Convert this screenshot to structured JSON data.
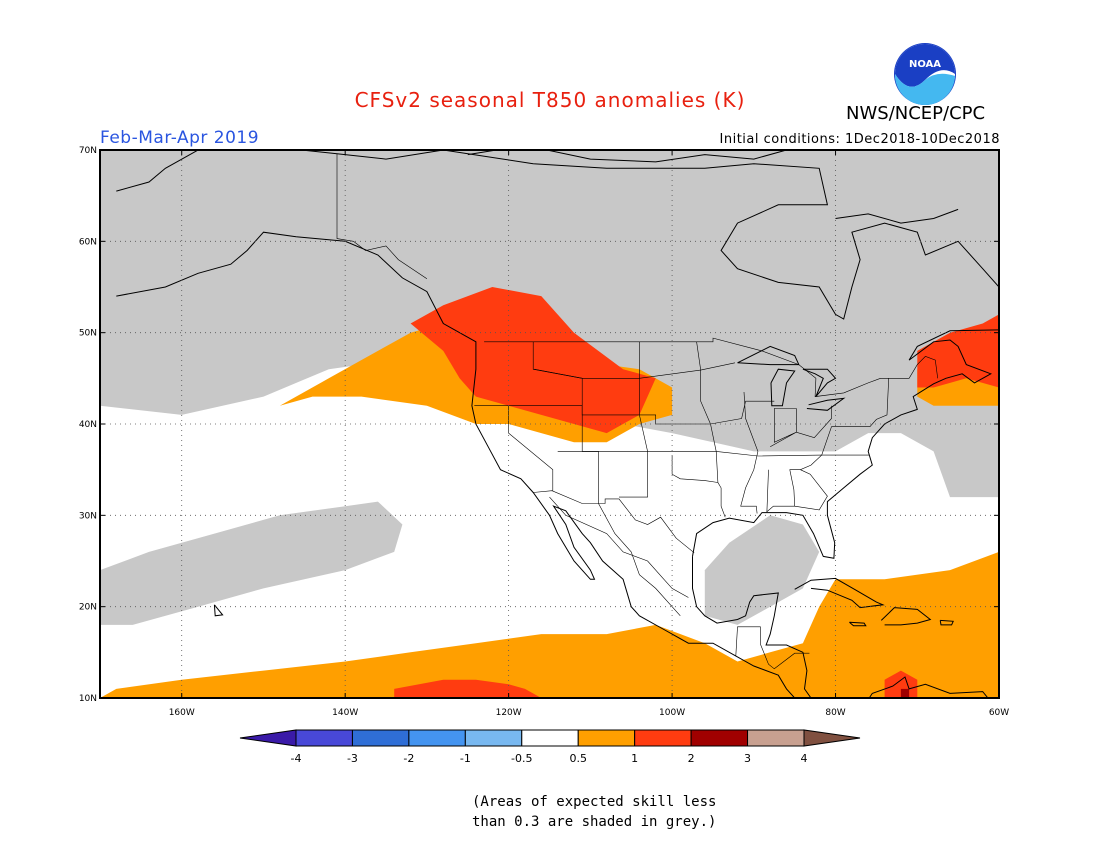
{
  "header": {
    "title": "CFSv2 seasonal T850 anomalies (K)",
    "agency": "NWS/NCEP/CPC",
    "logo_text": "NOAA",
    "period": "Feb-Mar-Apr 2019",
    "initial_conditions": "Initial conditions: 1Dec2018-10Dec2018"
  },
  "colors": {
    "title": "#e8200f",
    "period": "#2a55e0",
    "skill_grey": "#c8c8c8",
    "ocean_white": "#ffffff",
    "anom_0_5_1": "#ff9f00",
    "anom_1_2": "#ff3c10",
    "anom_2_3": "#a00000",
    "coast": "#000000"
  },
  "map": {
    "lat_labels": [
      "70N",
      "60N",
      "50N",
      "40N",
      "30N",
      "20N",
      "10N"
    ],
    "lon_labels": [
      "160W",
      "140W",
      "120W",
      "100W",
      "80W",
      "60W"
    ]
  },
  "colorbar": {
    "labels": [
      "-4",
      "-3",
      "-2",
      "-1",
      "-0.5",
      "0.5",
      "1",
      "2",
      "3",
      "4"
    ],
    "colors": [
      "#3a1aa8",
      "#4848d8",
      "#2f6ed6",
      "#4494f0",
      "#78b8f0",
      "#ffffff",
      "#ff9f00",
      "#ff3c10",
      "#a00000",
      "#c8a090",
      "#805040"
    ]
  },
  "footnote": {
    "line1": "(Areas of expected skill less",
    "line2": "than 0.3 are shaded in grey.)"
  }
}
